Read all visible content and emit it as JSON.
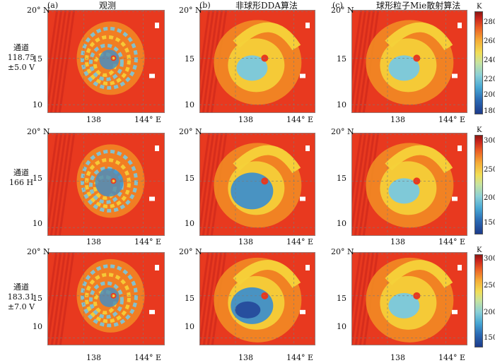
{
  "column_headers": [
    "观测",
    "非球形DDA算法",
    "球形粒子Mie散射算法"
  ],
  "panel_labels": [
    "(a)",
    "(b)",
    "(c)"
  ],
  "row_labels": [
    [
      "通道",
      "118.75",
      "±5.0 V"
    ],
    [
      "通道",
      "166 H"
    ],
    [
      "通道",
      "183.31",
      "±7.0 V"
    ]
  ],
  "lat_ticks": [
    "20° N",
    "15",
    "10"
  ],
  "lon_ticks": [
    "138",
    "144° E"
  ],
  "colorbar_unit": "K",
  "colorbars": [
    {
      "ticks": [
        "280",
        "260",
        "240",
        "220",
        "200",
        "180"
      ],
      "min": 180,
      "max": 285
    },
    {
      "ticks": [
        "300",
        "250",
        "200",
        "150"
      ],
      "min": 130,
      "max": 305
    },
    {
      "ticks": [
        "300",
        "250",
        "200",
        "150"
      ],
      "min": 130,
      "max": 305
    }
  ],
  "colors": {
    "background_red": "#e8391f",
    "edge_red": "#d62d1c",
    "orange": "#f28b24",
    "yellow": "#f5d23a",
    "light_blue": "#78c8e0",
    "blue": "#3f8fc9",
    "dark_blue": "#23489a",
    "grid": "#7a7a7a"
  },
  "chart_data": {
    "type": "heatmap",
    "title": "",
    "columns": [
      "观测",
      "非球形DDA算法",
      "球形粒子Mie散射算法"
    ],
    "rows": [
      "通道 118.75 ±5.0 V",
      "通道 166 H",
      "通道 183.31 ±7.0 V"
    ],
    "x_axis": {
      "ticks": [
        138,
        144
      ],
      "unit": "° E"
    },
    "y_axis": {
      "ticks": [
        10,
        15,
        20
      ],
      "unit": "° N"
    },
    "colorbar_unit": "K",
    "colorbar_ranges": [
      [
        180,
        285
      ],
      [
        130,
        305
      ],
      [
        130,
        305
      ]
    ],
    "colorbar_ticks": [
      [
        180,
        200,
        220,
        240,
        260,
        280
      ],
      [
        150,
        200,
        250,
        300
      ],
      [
        150,
        200,
        250,
        300
      ]
    ],
    "typhoon_center": {
      "lon": 141,
      "lat": 15
    },
    "grid": true
  }
}
